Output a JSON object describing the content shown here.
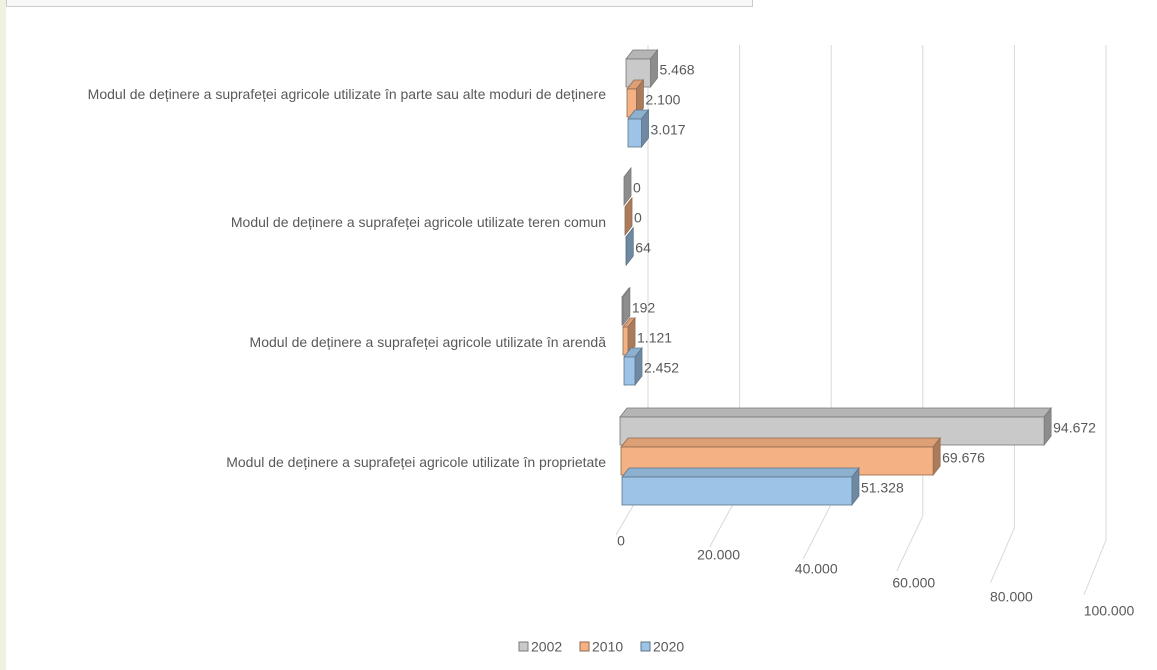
{
  "chart_data": {
    "type": "bar3d",
    "categories": [
      "Modul de deținere a suprafeței agricole utilizate în proprietate",
      "Modul de deținere a suprafeței agricole utilizate în arendă",
      "Modul de deținere a suprafeței agricole utilizate teren comun",
      "Modul de deținere a suprafeței agricole utilizate în parte sau alte moduri de deținere"
    ],
    "series": [
      {
        "name": "2002",
        "color": "#c9c9c9",
        "values": [
          94672,
          192,
          0,
          5468
        ],
        "value_labels": [
          "94.672",
          "192",
          "0",
          "5.468"
        ]
      },
      {
        "name": "2010",
        "color": "#f4b183",
        "values": [
          69676,
          1121,
          0,
          2100
        ],
        "value_labels": [
          "69.676",
          "1.121",
          "0",
          "2.100"
        ]
      },
      {
        "name": "2020",
        "color": "#9dc3e6",
        "values": [
          51328,
          2452,
          64,
          3017
        ],
        "value_labels": [
          "51.328",
          "2.452",
          "64",
          "3.017"
        ]
      }
    ],
    "xlim": [
      0,
      100000
    ],
    "xticks": [
      0,
      {
        "value": 20000,
        "label": "20.000"
      },
      {
        "value": 40000,
        "label": "40.000"
      },
      {
        "value": 60000,
        "label": "60.000"
      },
      {
        "value": 80000,
        "label": "80.000"
      },
      {
        "value": 100000,
        "label": "100.000"
      }
    ],
    "grid": true,
    "legend": "bottom"
  }
}
